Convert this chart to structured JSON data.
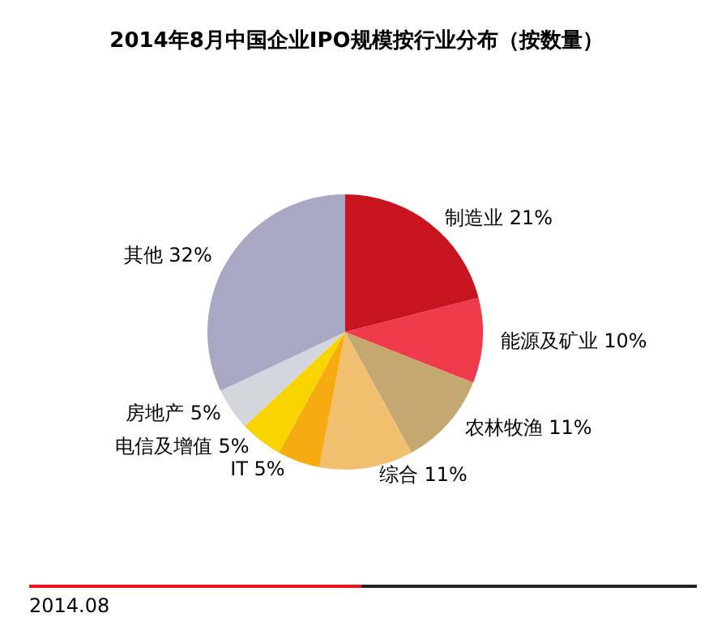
{
  "chart_data": {
    "type": "pie",
    "title": "2014年8月中国企业IPO规模按行业分布（按数量）",
    "categories": [
      "制造业",
      "能源及矿业",
      "农林牧渔",
      "综合",
      "IT",
      "电信及增值",
      "房地产",
      "其他"
    ],
    "values": [
      21,
      10,
      11,
      11,
      5,
      5,
      5,
      32
    ],
    "colors": [
      "#c8141e",
      "#ee3a4a",
      "#c4a870",
      "#f0c070",
      "#f6ab10",
      "#f8d400",
      "#d4d6de",
      "#a8a8c4"
    ],
    "value_labels": [
      "21%",
      "10%",
      "11%",
      "11%",
      "5%",
      "5%",
      "5%",
      "32%"
    ],
    "legend": false,
    "annotations": [
      "2014.08"
    ]
  }
}
